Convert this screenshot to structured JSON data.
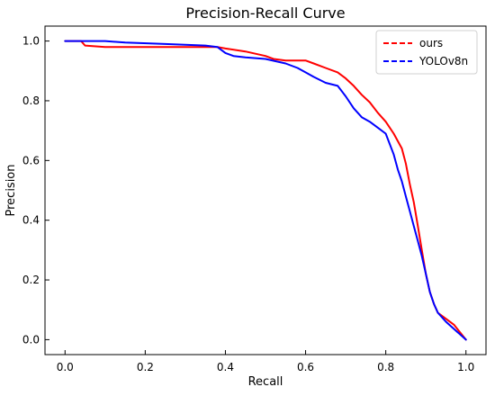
{
  "chart_data": {
    "type": "line",
    "title": "Precision-Recall Curve",
    "xlabel": "Recall",
    "ylabel": "Precision",
    "xlim": [
      -0.05,
      1.05
    ],
    "ylim": [
      -0.05,
      1.05
    ],
    "xticks": [
      0.0,
      0.2,
      0.4,
      0.6,
      0.8,
      1.0
    ],
    "yticks": [
      0.0,
      0.2,
      0.4,
      0.6,
      0.8,
      1.0
    ],
    "xtick_labels": [
      "0.0",
      "0.2",
      "0.4",
      "0.6",
      "0.8",
      "1.0"
    ],
    "ytick_labels": [
      "0.0",
      "0.2",
      "0.4",
      "0.6",
      "0.8",
      "1.0"
    ],
    "grid": false,
    "legend_position": "top-right",
    "series": [
      {
        "name": "ours",
        "color": "#ff0000",
        "x": [
          0.0,
          0.04,
          0.05,
          0.1,
          0.2,
          0.3,
          0.38,
          0.4,
          0.45,
          0.5,
          0.52,
          0.55,
          0.6,
          0.62,
          0.65,
          0.68,
          0.7,
          0.72,
          0.74,
          0.76,
          0.78,
          0.8,
          0.82,
          0.84,
          0.85,
          0.86,
          0.87,
          0.88,
          0.89,
          0.9,
          0.91,
          0.92,
          0.93,
          0.95,
          0.97,
          1.0
        ],
        "y": [
          1.0,
          1.0,
          0.985,
          0.98,
          0.98,
          0.98,
          0.98,
          0.975,
          0.965,
          0.95,
          0.94,
          0.935,
          0.935,
          0.925,
          0.91,
          0.895,
          0.875,
          0.85,
          0.82,
          0.795,
          0.76,
          0.73,
          0.69,
          0.64,
          0.59,
          0.52,
          0.46,
          0.38,
          0.3,
          0.22,
          0.16,
          0.12,
          0.09,
          0.07,
          0.05,
          0.0
        ]
      },
      {
        "name": "YOLOv8n",
        "color": "#0000ff",
        "x": [
          0.0,
          0.1,
          0.15,
          0.25,
          0.35,
          0.38,
          0.4,
          0.42,
          0.45,
          0.5,
          0.55,
          0.58,
          0.6,
          0.62,
          0.65,
          0.68,
          0.7,
          0.72,
          0.74,
          0.76,
          0.78,
          0.8,
          0.82,
          0.83,
          0.84,
          0.85,
          0.86,
          0.87,
          0.88,
          0.89,
          0.9,
          0.91,
          0.92,
          0.93,
          0.95,
          1.0
        ],
        "y": [
          1.0,
          1.0,
          0.995,
          0.99,
          0.985,
          0.98,
          0.96,
          0.95,
          0.945,
          0.94,
          0.925,
          0.91,
          0.895,
          0.88,
          0.86,
          0.85,
          0.815,
          0.775,
          0.745,
          0.73,
          0.71,
          0.69,
          0.62,
          0.57,
          0.53,
          0.48,
          0.43,
          0.38,
          0.33,
          0.28,
          0.22,
          0.16,
          0.12,
          0.09,
          0.06,
          0.0
        ]
      }
    ]
  }
}
